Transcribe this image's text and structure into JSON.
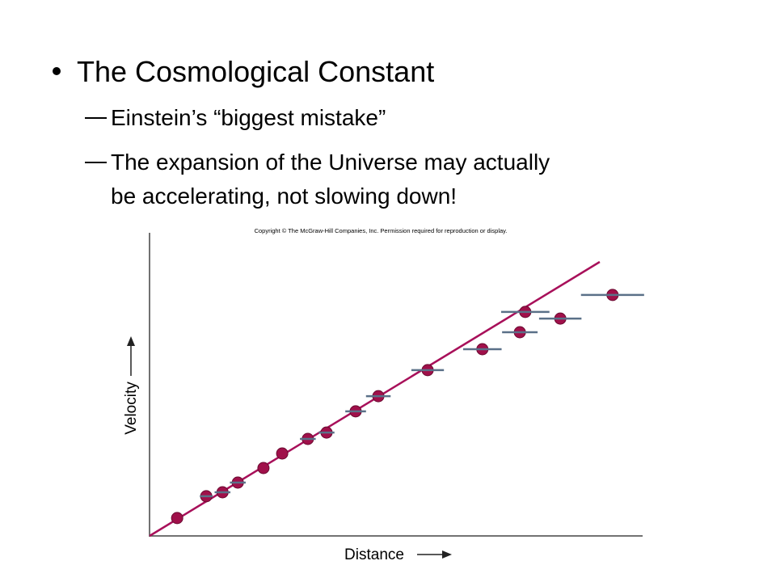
{
  "slide": {
    "title": "The Cosmological Constant",
    "bullets": [
      "Einstein’s “biggest mistake”",
      "The expansion of the Universe may actually",
      "be accelerating, not slowing down!"
    ],
    "copyright": "Copyright © The McGraw-Hill Companies, Inc. Permission required for reproduction or display."
  },
  "chart_data": {
    "type": "scatter",
    "xlabel": "Distance",
    "ylabel": "Velocity",
    "xlim": [
      0,
      100
    ],
    "ylim": [
      0,
      100
    ],
    "point_color": "#a0104a",
    "errorbar_color": "#5a7088",
    "line_color": "#a8105a",
    "points": {
      "x": [
        5.6,
        11.5,
        14.8,
        17.9,
        23.1,
        26.9,
        32.1,
        35.9,
        41.8,
        46.4,
        56.4,
        67.5,
        75.1,
        76.2,
        83.3,
        93.9
      ],
      "y": [
        5.9,
        13.1,
        14.4,
        17.6,
        22.4,
        27.2,
        32.0,
        34.1,
        41.1,
        46.1,
        54.7,
        61.6,
        67.2,
        73.9,
        71.7,
        79.5
      ],
      "xerr": [
        0,
        1.3,
        1.6,
        1.6,
        0,
        0,
        1.6,
        1.6,
        2.1,
        2.5,
        3.3,
        3.9,
        3.6,
        4.9,
        4.3,
        6.4
      ]
    },
    "fit_line": {
      "x": [
        0,
        91.3
      ],
      "y": [
        0,
        90.4
      ]
    }
  }
}
